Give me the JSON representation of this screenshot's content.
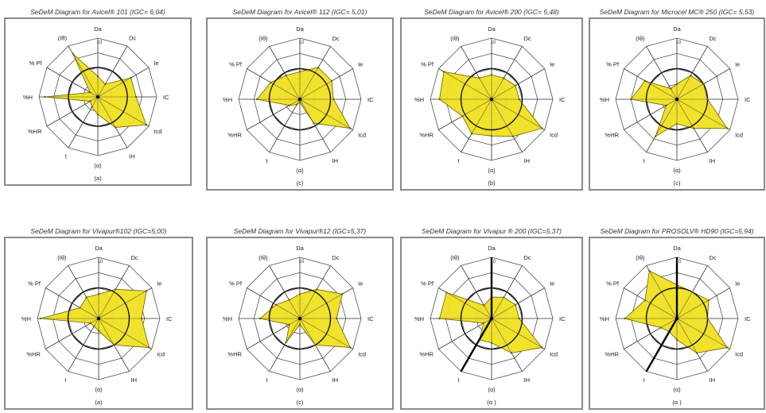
{
  "chart_data": [
    {
      "type": "radar",
      "title": "SeDeM Diagram for Avicel® 101 (IGC= 6,04)",
      "caption": "(a)",
      "axes": [
        "Da",
        "Dc",
        "Ie",
        "IC",
        "Icd",
        "IH",
        "(α)",
        "t",
        "%HR",
        "%H",
        "% Pf",
        "(Iθ)"
      ],
      "scale_label": "10",
      "rmax": 10,
      "reference_radius": 5,
      "values": [
        3.5,
        2.5,
        6.5,
        6.5,
        9.5,
        6.0,
        3.0,
        2.0,
        1.5,
        9.0,
        1.5,
        8.5
      ],
      "fill": "#f0e020"
    },
    {
      "type": "radar",
      "title": "SeDeM Diagram for Avicel® 112 (IGC= 5,01)",
      "caption": "(c)",
      "axes": [
        "Da",
        "Dc",
        "Ie",
        "IC",
        "Icd",
        "IH",
        "(α)",
        "t",
        "%HR",
        "%H",
        "% Pf",
        "(Iθ)"
      ],
      "scale_label": "10",
      "rmax": 10,
      "reference_radius": 5,
      "values": [
        4.5,
        6.0,
        6.0,
        5.5,
        9.5,
        4.5,
        0.5,
        1.0,
        2.0,
        7.0,
        5.5,
        4.5
      ],
      "fill": "#f0e020"
    },
    {
      "type": "radar",
      "title": "SeDeM Diagram for Avicel® 200 (IGC= 5,48)",
      "caption": "(b)",
      "axes": [
        "Da",
        "Dc",
        "Ie",
        "IC",
        "Icd",
        "IH",
        "(α)",
        "t",
        "%HR",
        "%H",
        "% Pf",
        "(Iθ)"
      ],
      "scale_label": "10",
      "rmax": 10,
      "reference_radius": 5,
      "values": [
        4.0,
        4.0,
        4.5,
        4.5,
        9.5,
        7.0,
        6.0,
        6.5,
        5.5,
        8.5,
        9.0,
        4.0
      ],
      "fill": "#f0e020"
    },
    {
      "type": "radar",
      "title": "SeDeM Diagram for Microcel MC® 250 (IGC= 5,53)",
      "caption": "(c)",
      "axes": [
        "Da",
        "Dc",
        "Ie",
        "IC",
        "Icd",
        "IH",
        "(α)",
        "t",
        "%HR",
        "%H",
        "% Pf",
        "(Iθ)"
      ],
      "scale_label": "10",
      "rmax": 10,
      "reference_radius": 5,
      "values": [
        2.5,
        4.5,
        5.0,
        5.0,
        9.5,
        5.5,
        4.0,
        7.0,
        2.0,
        7.5,
        6.0,
        2.0
      ],
      "fill": "#f0e020"
    },
    {
      "type": "radar",
      "title": "SeDeM Diagram for Vivapur®102 (IGC=5,00)",
      "caption": "(a)",
      "axes": [
        "Da",
        "Dc",
        "Ie",
        "IC",
        "Icd",
        "IH",
        "(α)",
        "t",
        "%HR",
        "%H",
        "% Pf",
        "(Iθ)"
      ],
      "scale_label": "10",
      "rmax": 10,
      "reference_radius": 5,
      "values": [
        4.0,
        5.5,
        9.0,
        7.0,
        9.5,
        5.0,
        2.0,
        1.5,
        1.5,
        9.5,
        3.5,
        4.0
      ],
      "fill": "#f0e020"
    },
    {
      "type": "radar",
      "title": "SeDeM Diagram for Vivapur®12 (IGC=5,37)",
      "caption": "(c)",
      "axes": [
        "Da",
        "Dc",
        "Ie",
        "IC",
        "Icd",
        "IH",
        "(α)",
        "t",
        "%HR",
        "%H",
        "% Pf",
        "(Iθ)"
      ],
      "scale_label": "10",
      "rmax": 10,
      "reference_radius": 5,
      "values": [
        4.0,
        5.5,
        8.0,
        6.0,
        9.5,
        5.0,
        1.0,
        4.5,
        2.0,
        6.5,
        4.5,
        3.5
      ],
      "fill": "#f0e020"
    },
    {
      "type": "radar",
      "title": "SeDeM Diagram for Vivapur ® 200 (IGC=5,37)",
      "caption": "(α )",
      "axes": [
        "Da",
        "Dc",
        "Ie",
        "IC",
        "Icd",
        "IH",
        "(α)",
        "t",
        "%HR",
        "%H",
        "% Pf",
        "(Iθ)"
      ],
      "scale_label": "10",
      "rmax": 10,
      "reference_radius": 5,
      "values": [
        3.5,
        4.0,
        4.5,
        4.5,
        9.5,
        6.5,
        4.0,
        4.0,
        1.5,
        8.5,
        8.5,
        2.5
      ],
      "fill": "#f0e020"
    },
    {
      "type": "radar",
      "title": "SeDeM Diagram for PROSOLV® HD90 (IGC=5,94)",
      "caption": "(α )",
      "axes": [
        "Da",
        "Dc",
        "Ie",
        "IC",
        "Icd",
        "IH",
        "(α)",
        "t",
        "%HR",
        "%H",
        "% Pf",
        "(Iθ)"
      ],
      "scale_label": "10",
      "rmax": 10,
      "reference_radius": 5,
      "values": [
        5.5,
        5.0,
        6.0,
        5.0,
        9.5,
        6.5,
        3.5,
        2.5,
        3.0,
        8.5,
        6.0,
        9.0
      ],
      "fill": "#f0e020"
    }
  ]
}
